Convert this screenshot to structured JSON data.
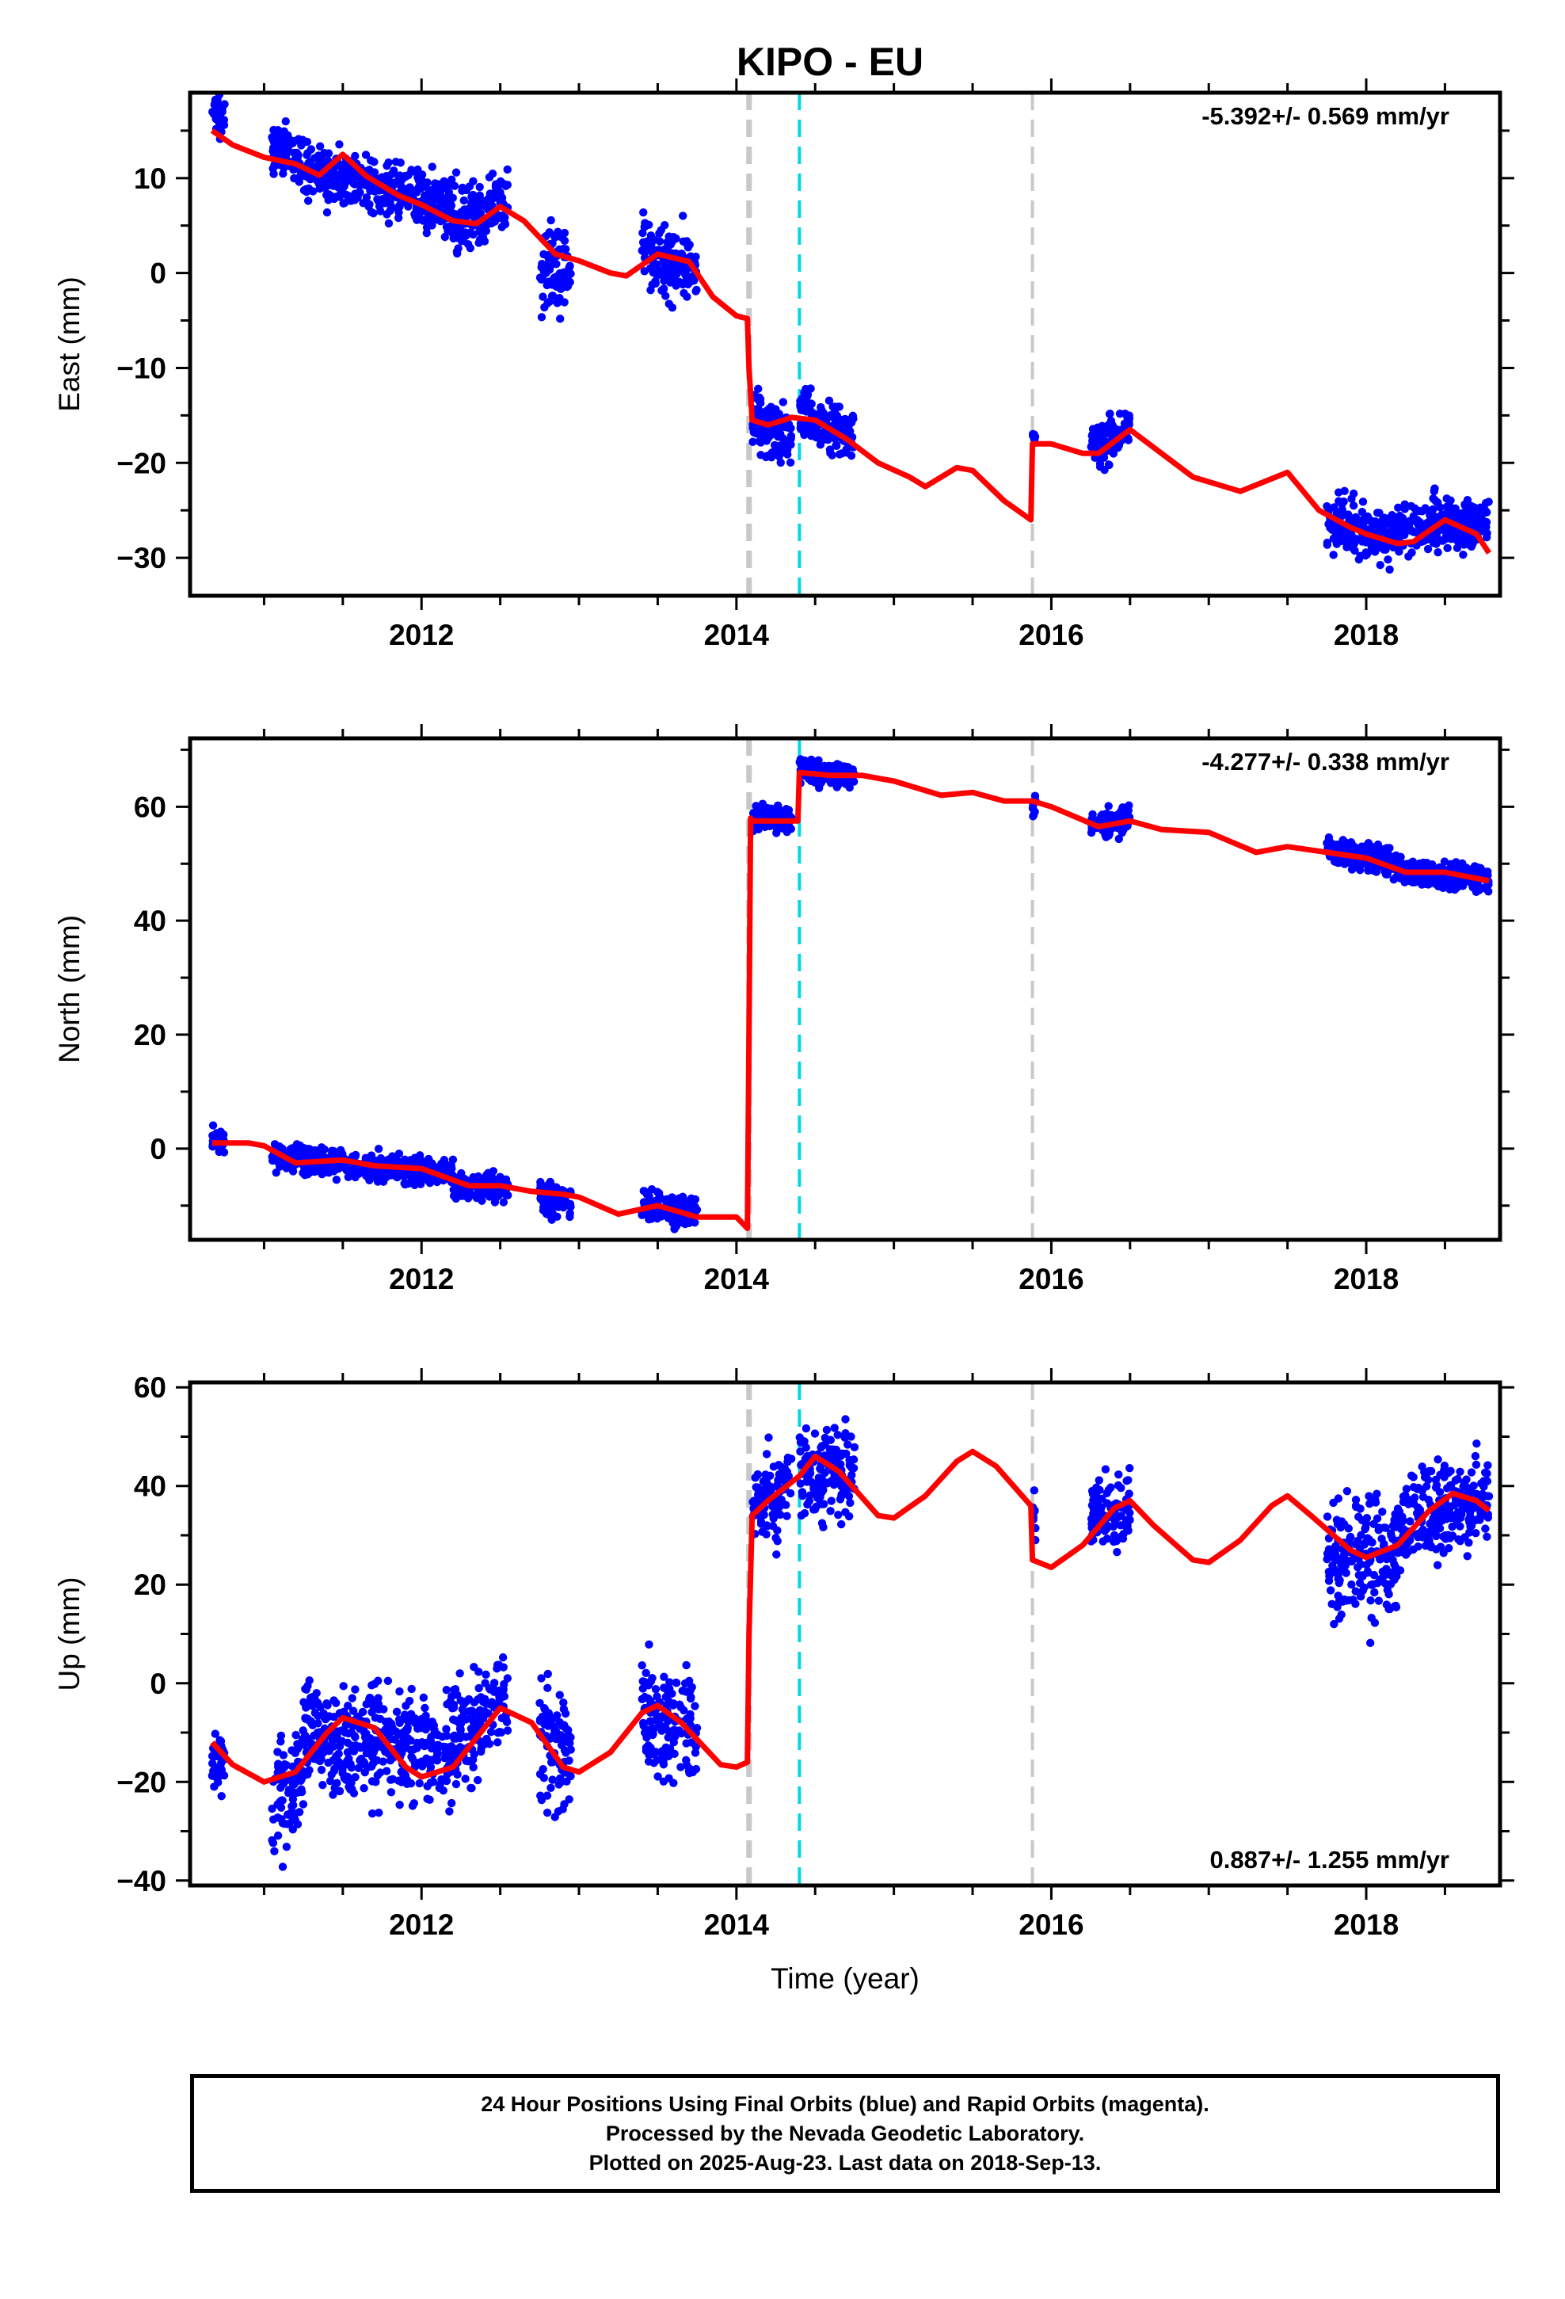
{
  "title": "KIPO - EU",
  "xlabel": "Time (year)",
  "footer": {
    "line1": "24 Hour Positions Using Final Orbits (blue) and Rapid Orbits (magenta).",
    "line2": "Processed by the Nevada Geodetic Laboratory.",
    "line3": "Plotted on 2025-Aug-23. Last data on 2018-Sep-13."
  },
  "colors": {
    "points": "#0000ff",
    "model": "#ff0000",
    "event_gray": "#c8c8c8",
    "event_cyan": "#00d8e8"
  },
  "chart_data": [
    {
      "type": "scatter",
      "panel": "east",
      "ylabel": "East (mm)",
      "rate_text": "-5.392+/- 0.569 mm/yr",
      "rate_position": "top-right",
      "xlim": [
        2010.53,
        2018.85
      ],
      "ylim": [
        -34,
        19
      ],
      "yticks": [
        -30,
        -20,
        -10,
        0,
        10
      ],
      "xticks": [
        2012,
        2014,
        2016,
        2018
      ],
      "events": [
        {
          "x": 2014.08,
          "style": "gray-thick"
        },
        {
          "x": 2014.4,
          "style": "cyan"
        },
        {
          "x": 2015.88,
          "style": "gray"
        }
      ],
      "model": {
        "type": "line",
        "points": [
          [
            2010.67,
            15.0
          ],
          [
            2010.8,
            13.5
          ],
          [
            2011.0,
            12.2
          ],
          [
            2011.2,
            11.5
          ],
          [
            2011.35,
            10.3
          ],
          [
            2011.5,
            12.5
          ],
          [
            2011.65,
            10.2
          ],
          [
            2011.85,
            8.2
          ],
          [
            2012.0,
            7.2
          ],
          [
            2012.2,
            5.5
          ],
          [
            2012.35,
            5.2
          ],
          [
            2012.5,
            7.0
          ],
          [
            2012.65,
            5.5
          ],
          [
            2012.85,
            2.0
          ],
          [
            2013.0,
            1.3
          ],
          [
            2013.2,
            0.0
          ],
          [
            2013.3,
            -0.3
          ],
          [
            2013.5,
            2.0
          ],
          [
            2013.7,
            1.2
          ],
          [
            2013.85,
            -2.5
          ],
          [
            2014.0,
            -4.5
          ],
          [
            2014.07,
            -4.8
          ],
          [
            2014.08,
            -10.0
          ],
          [
            2014.1,
            -15.5
          ],
          [
            2014.2,
            -16.0
          ],
          [
            2014.3,
            -15.5
          ],
          [
            2014.35,
            -15.2
          ],
          [
            2014.5,
            -15.5
          ],
          [
            2014.7,
            -17.5
          ],
          [
            2014.9,
            -20.0
          ],
          [
            2015.1,
            -21.5
          ],
          [
            2015.2,
            -22.5
          ],
          [
            2015.4,
            -20.5
          ],
          [
            2015.5,
            -20.8
          ],
          [
            2015.7,
            -24.0
          ],
          [
            2015.87,
            -26.0
          ],
          [
            2015.88,
            -18.0
          ],
          [
            2016.0,
            -18.0
          ],
          [
            2016.2,
            -19.0
          ],
          [
            2016.3,
            -19.0
          ],
          [
            2016.5,
            -16.5
          ],
          [
            2016.7,
            -19.0
          ],
          [
            2016.9,
            -21.5
          ],
          [
            2017.0,
            -22.0
          ],
          [
            2017.2,
            -23.0
          ],
          [
            2017.5,
            -21.0
          ],
          [
            2017.7,
            -25.0
          ],
          [
            2017.9,
            -26.8
          ],
          [
            2018.0,
            -27.5
          ],
          [
            2018.2,
            -28.5
          ],
          [
            2018.3,
            -28.3
          ],
          [
            2018.5,
            -26.0
          ],
          [
            2018.7,
            -27.5
          ],
          [
            2018.78,
            -29.5
          ]
        ]
      },
      "observations": {
        "series": "Final Orbits",
        "segments": [
          {
            "x_range": [
              2010.67,
              2010.75
            ],
            "y_center": 16.5,
            "spread": 1.2,
            "trend": -1.0
          },
          {
            "x_range": [
              2011.05,
              2011.25
            ],
            "y_center": 12.8,
            "spread": 1.5,
            "trend": -1.5
          },
          {
            "x_range": [
              2011.25,
              2012.2
            ],
            "y_center": 9.0,
            "spread": 1.6,
            "trend": -4.0
          },
          {
            "x_range": [
              2012.2,
              2012.55
            ],
            "y_center": 6.5,
            "spread": 1.8,
            "trend": 1.5
          },
          {
            "x_range": [
              2012.75,
              2012.95
            ],
            "y_center": 0.5,
            "spread": 2.6,
            "trend": -1.5
          },
          {
            "x_range": [
              2013.4,
              2013.75
            ],
            "y_center": 1.0,
            "spread": 2.0,
            "trend": -2.0
          },
          {
            "x_range": [
              2014.1,
              2014.35
            ],
            "y_center": -16.5,
            "spread": 1.8,
            "trend": -1.5
          },
          {
            "x_range": [
              2014.4,
              2014.75
            ],
            "y_center": -16.0,
            "spread": 1.6,
            "trend": -2.5
          },
          {
            "x_range": [
              2015.88,
              2015.9
            ],
            "y_center": -17.5,
            "spread": 0.5,
            "trend": 0
          },
          {
            "x_range": [
              2016.25,
              2016.5
            ],
            "y_center": -17.5,
            "spread": 1.3,
            "trend": 2.0
          },
          {
            "x_range": [
              2017.75,
              2018.2
            ],
            "y_center": -27.0,
            "spread": 1.6,
            "trend": -2.0
          },
          {
            "x_range": [
              2018.2,
              2018.78
            ],
            "y_center": -26.5,
            "spread": 1.5,
            "trend": 0.5
          }
        ]
      }
    },
    {
      "type": "scatter",
      "panel": "north",
      "ylabel": "North (mm)",
      "rate_text": "-4.277+/- 0.338 mm/yr",
      "rate_position": "top-right",
      "xlim": [
        2010.53,
        2018.85
      ],
      "ylim": [
        -16,
        72
      ],
      "yticks": [
        0,
        20,
        40,
        60
      ],
      "xticks": [
        2012,
        2014,
        2016,
        2018
      ],
      "events": [
        {
          "x": 2014.08,
          "style": "gray-thick"
        },
        {
          "x": 2014.4,
          "style": "cyan"
        },
        {
          "x": 2015.88,
          "style": "gray"
        }
      ],
      "model": {
        "type": "line",
        "points": [
          [
            2010.67,
            1.0
          ],
          [
            2010.9,
            1.0
          ],
          [
            2011.0,
            0.5
          ],
          [
            2011.2,
            -2.5
          ],
          [
            2011.5,
            -2.0
          ],
          [
            2011.7,
            -3.0
          ],
          [
            2012.0,
            -3.5
          ],
          [
            2012.3,
            -6.5
          ],
          [
            2012.5,
            -6.5
          ],
          [
            2012.7,
            -7.5
          ],
          [
            2012.9,
            -8.0
          ],
          [
            2013.0,
            -8.5
          ],
          [
            2013.25,
            -11.5
          ],
          [
            2013.5,
            -10.0
          ],
          [
            2013.75,
            -12.0
          ],
          [
            2014.0,
            -12.0
          ],
          [
            2014.07,
            -14.0
          ],
          [
            2014.08,
            20.0
          ],
          [
            2014.09,
            58.0
          ],
          [
            2014.1,
            57.5
          ],
          [
            2014.3,
            57.5
          ],
          [
            2014.39,
            57.5
          ],
          [
            2014.4,
            66.0
          ],
          [
            2014.6,
            65.5
          ],
          [
            2014.8,
            65.5
          ],
          [
            2015.0,
            64.5
          ],
          [
            2015.3,
            62.0
          ],
          [
            2015.5,
            62.5
          ],
          [
            2015.7,
            61.0
          ],
          [
            2015.88,
            61.0
          ],
          [
            2016.0,
            60.0
          ],
          [
            2016.3,
            56.5
          ],
          [
            2016.5,
            57.5
          ],
          [
            2016.7,
            56.0
          ],
          [
            2017.0,
            55.5
          ],
          [
            2017.3,
            52.0
          ],
          [
            2017.5,
            53.0
          ],
          [
            2017.75,
            52.0
          ],
          [
            2018.0,
            51.0
          ],
          [
            2018.25,
            48.5
          ],
          [
            2018.5,
            48.5
          ],
          [
            2018.78,
            47.0
          ]
        ]
      },
      "observations": {
        "series": "Final Orbits",
        "segments": [
          {
            "x_range": [
              2010.67,
              2010.75
            ],
            "y_center": 1.5,
            "spread": 1.3,
            "trend": -1.0
          },
          {
            "x_range": [
              2011.05,
              2011.25
            ],
            "y_center": -1.5,
            "spread": 1.3,
            "trend": -1.0
          },
          {
            "x_range": [
              2011.25,
              2012.2
            ],
            "y_center": -3.2,
            "spread": 1.3,
            "trend": -2.5
          },
          {
            "x_range": [
              2012.2,
              2012.55
            ],
            "y_center": -6.8,
            "spread": 1.3,
            "trend": 0.5
          },
          {
            "x_range": [
              2012.75,
              2012.95
            ],
            "y_center": -9.0,
            "spread": 1.6,
            "trend": -1.0
          },
          {
            "x_range": [
              2013.4,
              2013.75
            ],
            "y_center": -10.5,
            "spread": 1.5,
            "trend": -1.0
          },
          {
            "x_range": [
              2014.1,
              2014.35
            ],
            "y_center": 58.0,
            "spread": 1.2,
            "trend": 0.0
          },
          {
            "x_range": [
              2014.4,
              2014.75
            ],
            "y_center": 66.0,
            "spread": 1.1,
            "trend": -1.0
          },
          {
            "x_range": [
              2015.88,
              2015.9
            ],
            "y_center": 59.5,
            "spread": 1.2,
            "trend": 0
          },
          {
            "x_range": [
              2016.25,
              2016.5
            ],
            "y_center": 57.0,
            "spread": 1.3,
            "trend": 2.0
          },
          {
            "x_range": [
              2017.75,
              2018.2
            ],
            "y_center": 51.5,
            "spread": 1.5,
            "trend": -3.0
          },
          {
            "x_range": [
              2018.2,
              2018.78
            ],
            "y_center": 48.0,
            "spread": 1.3,
            "trend": -1.5
          }
        ]
      }
    },
    {
      "type": "scatter",
      "panel": "up",
      "ylabel": "Up (mm)",
      "rate_text": "0.887+/- 1.255 mm/yr",
      "rate_position": "bottom-right",
      "xlim": [
        2010.53,
        2018.85
      ],
      "ylim": [
        -41,
        61
      ],
      "yticks": [
        -40,
        -20,
        0,
        20,
        40,
        60
      ],
      "xticks": [
        2012,
        2014,
        2016,
        2018
      ],
      "events": [
        {
          "x": 2014.08,
          "style": "gray-thick"
        },
        {
          "x": 2014.4,
          "style": "cyan"
        },
        {
          "x": 2015.88,
          "style": "gray"
        }
      ],
      "model": {
        "type": "line",
        "points": [
          [
            2010.67,
            -12.0
          ],
          [
            2010.8,
            -16.5
          ],
          [
            2011.0,
            -20.0
          ],
          [
            2011.2,
            -18.0
          ],
          [
            2011.4,
            -10.0
          ],
          [
            2011.5,
            -7.0
          ],
          [
            2011.7,
            -9.0
          ],
          [
            2011.9,
            -17.0
          ],
          [
            2012.0,
            -19.0
          ],
          [
            2012.2,
            -17.0
          ],
          [
            2012.4,
            -9.0
          ],
          [
            2012.5,
            -5.0
          ],
          [
            2012.7,
            -8.0
          ],
          [
            2012.9,
            -17.0
          ],
          [
            2013.0,
            -18.0
          ],
          [
            2013.2,
            -14.0
          ],
          [
            2013.4,
            -6.0
          ],
          [
            2013.5,
            -4.5
          ],
          [
            2013.65,
            -8.0
          ],
          [
            2013.9,
            -16.5
          ],
          [
            2014.0,
            -17.0
          ],
          [
            2014.07,
            -16.0
          ],
          [
            2014.08,
            10.0
          ],
          [
            2014.1,
            34.0
          ],
          [
            2014.2,
            37.0
          ],
          [
            2014.4,
            42.0
          ],
          [
            2014.5,
            46.0
          ],
          [
            2014.65,
            43.0
          ],
          [
            2014.9,
            34.0
          ],
          [
            2015.0,
            33.5
          ],
          [
            2015.2,
            38.0
          ],
          [
            2015.4,
            45.0
          ],
          [
            2015.5,
            47.0
          ],
          [
            2015.65,
            44.0
          ],
          [
            2015.87,
            36.0
          ],
          [
            2015.88,
            25.0
          ],
          [
            2016.0,
            23.5
          ],
          [
            2016.2,
            28.0
          ],
          [
            2016.4,
            35.5
          ],
          [
            2016.5,
            37.0
          ],
          [
            2016.65,
            32.0
          ],
          [
            2016.9,
            25.0
          ],
          [
            2017.0,
            24.5
          ],
          [
            2017.2,
            29.0
          ],
          [
            2017.4,
            36.0
          ],
          [
            2017.5,
            38.0
          ],
          [
            2017.65,
            34.0
          ],
          [
            2017.9,
            27.0
          ],
          [
            2018.0,
            25.5
          ],
          [
            2018.2,
            28.0
          ],
          [
            2018.4,
            35.0
          ],
          [
            2018.55,
            38.5
          ],
          [
            2018.7,
            37.0
          ],
          [
            2018.78,
            35.0
          ]
        ]
      },
      "observations": {
        "series": "Final Orbits",
        "segments": [
          {
            "x_range": [
              2010.67,
              2010.75
            ],
            "y_center": -15.0,
            "spread": 4.0,
            "trend": 0
          },
          {
            "x_range": [
              2011.05,
              2011.25
            ],
            "y_center": -22.0,
            "spread": 6.5,
            "trend": 5.0
          },
          {
            "x_range": [
              2011.25,
              2012.2
            ],
            "y_center": -12.0,
            "spread": 6.0,
            "trend": -3.0
          },
          {
            "x_range": [
              2012.2,
              2012.55
            ],
            "y_center": -8.0,
            "spread": 6.0,
            "trend": 5.0
          },
          {
            "x_range": [
              2012.75,
              2012.95
            ],
            "y_center": -13.0,
            "spread": 7.0,
            "trend": -3.0
          },
          {
            "x_range": [
              2013.4,
              2013.75
            ],
            "y_center": -8.0,
            "spread": 6.0,
            "trend": -4.0
          },
          {
            "x_range": [
              2014.1,
              2014.35
            ],
            "y_center": 38.0,
            "spread": 5.0,
            "trend": 4.0
          },
          {
            "x_range": [
              2014.4,
              2014.75
            ],
            "y_center": 43.0,
            "spread": 5.5,
            "trend": -2.0
          },
          {
            "x_range": [
              2015.88,
              2015.9
            ],
            "y_center": 34.0,
            "spread": 3.0,
            "trend": 0
          },
          {
            "x_range": [
              2016.25,
              2016.5
            ],
            "y_center": 35.0,
            "spread": 4.5,
            "trend": 3.0
          },
          {
            "x_range": [
              2017.75,
              2018.2
            ],
            "y_center": 26.0,
            "spread": 6.5,
            "trend": 0.0
          },
          {
            "x_range": [
              2018.2,
              2018.78
            ],
            "y_center": 35.0,
            "spread": 5.0,
            "trend": 6.0
          }
        ]
      }
    }
  ]
}
